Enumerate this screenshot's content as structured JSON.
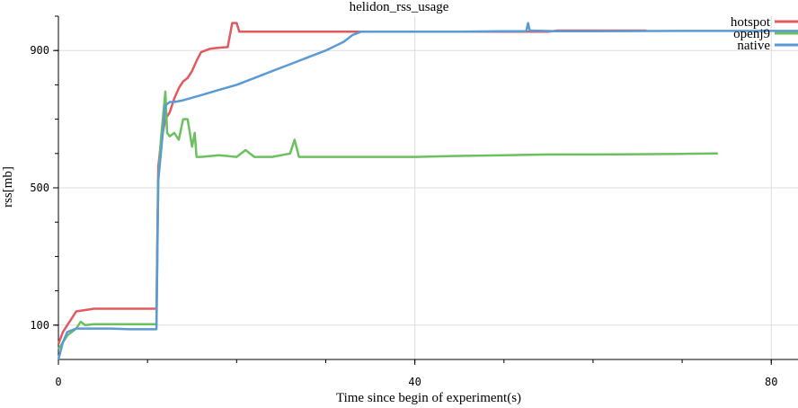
{
  "chart_data": {
    "type": "line",
    "title": "helidon_rss_usage",
    "xlabel": "Time since begin of experiment(s)",
    "ylabel": "rss[mb]",
    "xlim": [
      0,
      83
    ],
    "ylim": [
      0,
      1000
    ],
    "x_ticks": [
      0,
      40,
      80
    ],
    "x_tick_labels": [
      "0",
      "40",
      "80"
    ],
    "y_ticks": [
      100,
      500,
      900
    ],
    "y_tick_labels": [
      "100",
      "500",
      "900"
    ],
    "grid": true,
    "legend_position": "top-right",
    "series": [
      {
        "name": "hotspot",
        "color": "#e05a5f",
        "points": [
          [
            0,
            45
          ],
          [
            0.5,
            80
          ],
          [
            1,
            100
          ],
          [
            1.5,
            120
          ],
          [
            2,
            140
          ],
          [
            4,
            148
          ],
          [
            8,
            148
          ],
          [
            11,
            148
          ],
          [
            11.2,
            560
          ],
          [
            11.5,
            630
          ],
          [
            12,
            700
          ],
          [
            12.5,
            720
          ],
          [
            13,
            760
          ],
          [
            13.5,
            790
          ],
          [
            14,
            810
          ],
          [
            14.5,
            820
          ],
          [
            15,
            840
          ],
          [
            15.5,
            870
          ],
          [
            16,
            895
          ],
          [
            17,
            905
          ],
          [
            18,
            908
          ],
          [
            19,
            910
          ],
          [
            19.5,
            980
          ],
          [
            20,
            980
          ],
          [
            20.3,
            955
          ],
          [
            25,
            955
          ],
          [
            35,
            955
          ],
          [
            45,
            955
          ],
          [
            55,
            955
          ],
          [
            56,
            958
          ],
          [
            60,
            958
          ],
          [
            66,
            958
          ]
        ]
      },
      {
        "name": "openj9",
        "color": "#6cc060",
        "points": [
          [
            0,
            30
          ],
          [
            0.5,
            50
          ],
          [
            1,
            70
          ],
          [
            2,
            90
          ],
          [
            2.5,
            110
          ],
          [
            3,
            100
          ],
          [
            4,
            103
          ],
          [
            6,
            103
          ],
          [
            8,
            103
          ],
          [
            11,
            103
          ],
          [
            11.2,
            520
          ],
          [
            11.5,
            640
          ],
          [
            12,
            780
          ],
          [
            12.2,
            660
          ],
          [
            12.5,
            650
          ],
          [
            13,
            660
          ],
          [
            13.5,
            640
          ],
          [
            14,
            700
          ],
          [
            14.5,
            700
          ],
          [
            15,
            620
          ],
          [
            15.3,
            660
          ],
          [
            15.5,
            590
          ],
          [
            16,
            590
          ],
          [
            18,
            595
          ],
          [
            20,
            590
          ],
          [
            21,
            610
          ],
          [
            22,
            590
          ],
          [
            24,
            590
          ],
          [
            26,
            600
          ],
          [
            26.5,
            640
          ],
          [
            27,
            590
          ],
          [
            30,
            590
          ],
          [
            35,
            590
          ],
          [
            40,
            590
          ],
          [
            45,
            593
          ],
          [
            50,
            595
          ],
          [
            55,
            597
          ],
          [
            60,
            597
          ],
          [
            65,
            598
          ],
          [
            70,
            599
          ],
          [
            74,
            600
          ]
        ]
      },
      {
        "name": "native",
        "color": "#5a9bd5",
        "points": [
          [
            0,
            0
          ],
          [
            0.5,
            50
          ],
          [
            1,
            80
          ],
          [
            2,
            90
          ],
          [
            6,
            90
          ],
          [
            8,
            88
          ],
          [
            11,
            88
          ],
          [
            11.2,
            520
          ],
          [
            11.5,
            600
          ],
          [
            12,
            740
          ],
          [
            12.5,
            750
          ],
          [
            13,
            750
          ],
          [
            14,
            755
          ],
          [
            16,
            770
          ],
          [
            18,
            785
          ],
          [
            20,
            800
          ],
          [
            22,
            820
          ],
          [
            24,
            840
          ],
          [
            26,
            860
          ],
          [
            28,
            880
          ],
          [
            30,
            900
          ],
          [
            32,
            925
          ],
          [
            33,
            945
          ],
          [
            34,
            955
          ],
          [
            40,
            955
          ],
          [
            45,
            955
          ],
          [
            50,
            956
          ],
          [
            52.5,
            956
          ],
          [
            52.7,
            980
          ],
          [
            52.9,
            958
          ],
          [
            56,
            956
          ],
          [
            60,
            956
          ],
          [
            70,
            957
          ],
          [
            80,
            957
          ],
          [
            83,
            957
          ]
        ]
      }
    ]
  }
}
